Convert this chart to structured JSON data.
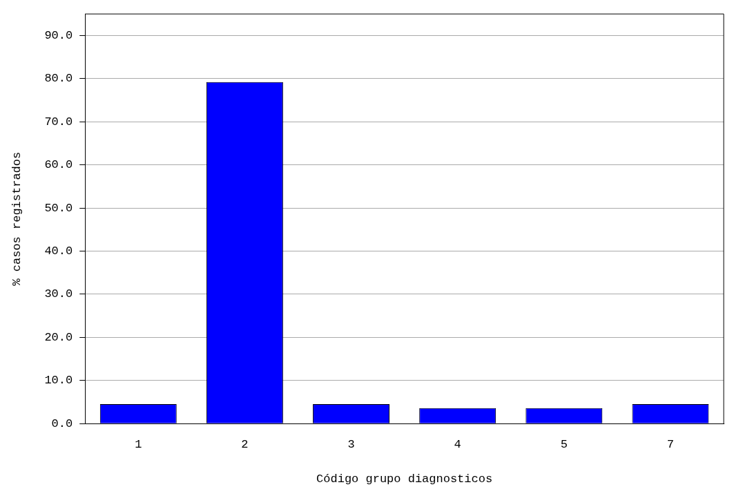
{
  "chart_data": {
    "type": "bar",
    "xlabel": "Código grupo diagnosticos",
    "ylabel": "% casos registrados",
    "categories": [
      "1",
      "2",
      "3",
      "4",
      "5",
      "7"
    ],
    "values": [
      4.5,
      79.2,
      4.5,
      3.6,
      3.6,
      4.5
    ],
    "color": "#0000ff",
    "ylim": [
      0,
      95
    ],
    "yticks": [
      {
        "value": 0,
        "label": "0.0"
      },
      {
        "value": 10,
        "label": "10.0"
      },
      {
        "value": 20,
        "label": "20.0"
      },
      {
        "value": 30,
        "label": "30.0"
      },
      {
        "value": 40,
        "label": "40.0"
      },
      {
        "value": 50,
        "label": "50.0"
      },
      {
        "value": 60,
        "label": "60.0"
      },
      {
        "value": 70,
        "label": "70.0"
      },
      {
        "value": 80,
        "label": "80.0"
      },
      {
        "value": 90,
        "label": "90.0"
      }
    ],
    "grid": "y",
    "legend": false
  }
}
